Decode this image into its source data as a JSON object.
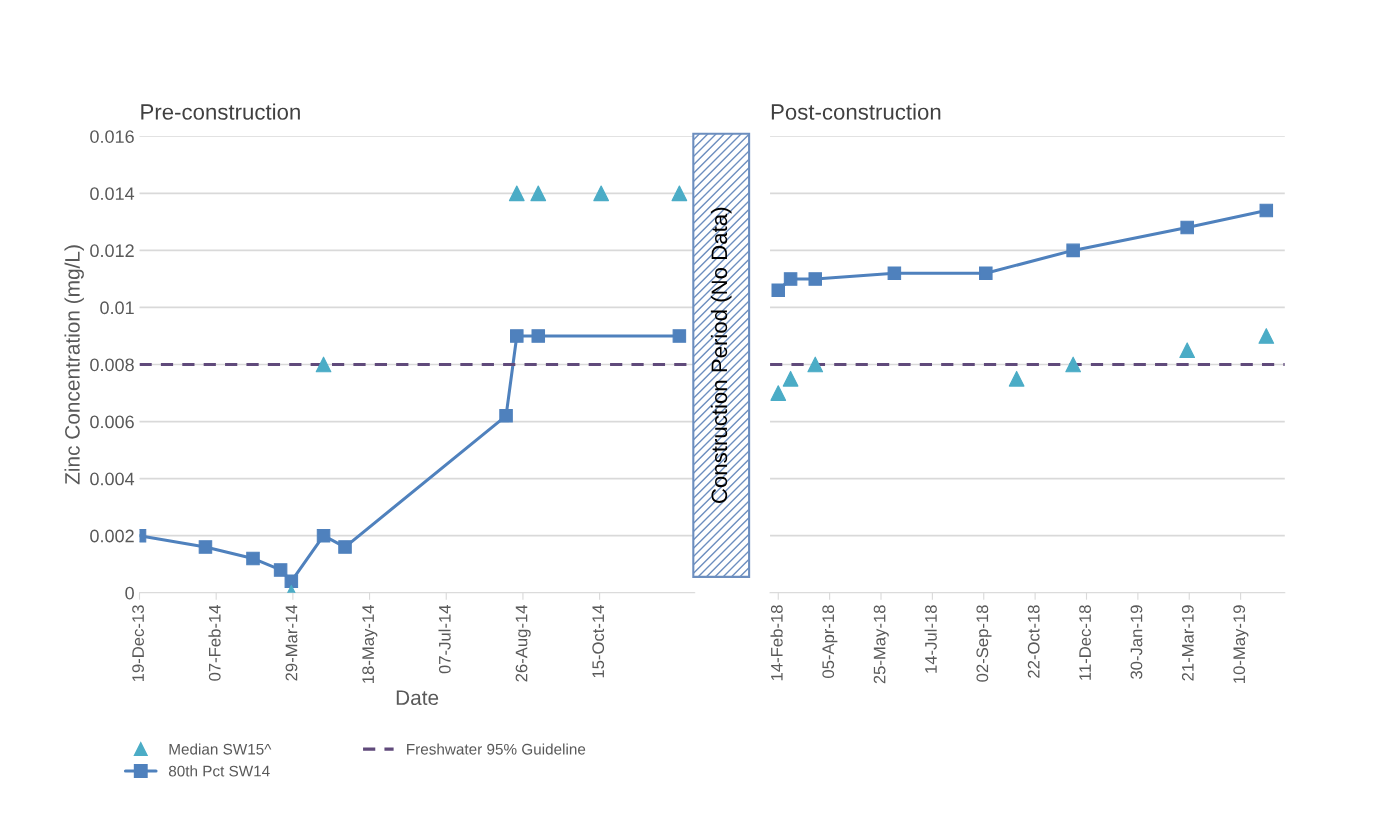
{
  "chart_data": [
    {
      "type": "line",
      "title": "Pre-construction",
      "xlabel": "Date",
      "ylabel": "Zinc Concentration (mg/L)",
      "xlim": [
        "2013-12-19",
        "2014-12-16"
      ],
      "xticks": [
        {
          "value": "2013-12-19",
          "label": "19-Dec-13"
        },
        {
          "value": "2014-02-07",
          "label": "07-Feb-14"
        },
        {
          "value": "2014-03-29",
          "label": "29-Mar-14"
        },
        {
          "value": "2014-05-18",
          "label": "18-May-14"
        },
        {
          "value": "2014-07-07",
          "label": "07-Jul-14"
        },
        {
          "value": "2014-08-26",
          "label": "26-Aug-14"
        },
        {
          "value": "2014-10-15",
          "label": "15-Oct-14"
        }
      ],
      "ylim": [
        0,
        0.016
      ],
      "yticks": [
        0,
        0.002,
        0.004,
        0.006,
        0.008,
        0.01,
        0.012,
        0.014,
        0.016
      ],
      "grid": "y",
      "legend": "bottom",
      "series": [
        {
          "name": "Median SW15^",
          "type": "scatter",
          "marker": "triangle",
          "color": "#4bacc6",
          "x": [
            "2014-03-28",
            "2014-04-18",
            "2014-08-22",
            "2014-09-05",
            "2014-10-16",
            "2014-12-06"
          ],
          "values": [
            0,
            0.008,
            0.014,
            0.014,
            0.014,
            0.014
          ]
        },
        {
          "name": "80th Pct SW14",
          "type": "line",
          "marker": "square",
          "color": "#4f81bd",
          "x": [
            "2013-12-19",
            "2014-01-31",
            "2014-03-03",
            "2014-03-21",
            "2014-03-28",
            "2014-04-18",
            "2014-05-02",
            "2014-08-15",
            "2014-08-22",
            "2014-09-05",
            "2014-12-06"
          ],
          "values": [
            0.002,
            0.0016,
            0.0012,
            0.0008,
            0.0004,
            0.002,
            0.0016,
            0.0062,
            0.009,
            0.009,
            0.009
          ]
        }
      ],
      "ref_lines": [
        {
          "axis": "y",
          "value": 0.008,
          "label": "Freshwater 95% Guideline",
          "color": "#604a7b",
          "line_style": "dashed"
        }
      ],
      "annotations": [
        "Construction Period (No Data)"
      ]
    },
    {
      "type": "line",
      "title": "Post-construction",
      "tick_labels": "x",
      "xlim": [
        "2018-02-06",
        "2019-06-22"
      ],
      "xticks": [
        {
          "value": "2018-02-14",
          "label": "14-Feb-18"
        },
        {
          "value": "2018-04-05",
          "label": "05-Apr-18"
        },
        {
          "value": "2018-05-25",
          "label": "25-May-18"
        },
        {
          "value": "2018-07-14",
          "label": "14-Jul-18"
        },
        {
          "value": "2018-09-02",
          "label": "02-Sep-18"
        },
        {
          "value": "2018-10-22",
          "label": "22-Oct-18"
        },
        {
          "value": "2018-12-11",
          "label": "11-Dec-18"
        },
        {
          "value": "2019-01-30",
          "label": "30-Jan-19"
        },
        {
          "value": "2019-03-21",
          "label": "21-Mar-19"
        },
        {
          "value": "2019-05-10",
          "label": "10-May-19"
        }
      ],
      "ylim": [
        0,
        0.016
      ],
      "yticks": [
        0,
        0.002,
        0.004,
        0.006,
        0.008,
        0.01,
        0.012,
        0.014,
        0.016
      ],
      "grid": "y",
      "series": [
        {
          "type": "scatter",
          "marker": "triangle",
          "color": "#4bacc6",
          "x": [
            "2018-02-14",
            "2018-02-26",
            "2018-03-22",
            "2018-10-04",
            "2018-11-28",
            "2019-03-19",
            "2019-06-04"
          ],
          "values": [
            0.007,
            0.0075,
            0.008,
            0.0075,
            0.008,
            0.0085,
            0.009
          ]
        },
        {
          "type": "line",
          "marker": "square",
          "color": "#4f81bd",
          "x": [
            "2018-02-14",
            "2018-02-26",
            "2018-03-22",
            "2018-06-07",
            "2018-09-04",
            "2018-11-28",
            "2019-03-19",
            "2019-06-04"
          ],
          "values": [
            0.0106,
            0.011,
            0.011,
            0.0112,
            0.0112,
            0.012,
            0.0128,
            0.0134
          ]
        }
      ],
      "ref_lines": [
        {
          "axis": "y",
          "value": 0.008,
          "color": "#604a7b",
          "line_style": "dashed"
        }
      ]
    }
  ]
}
